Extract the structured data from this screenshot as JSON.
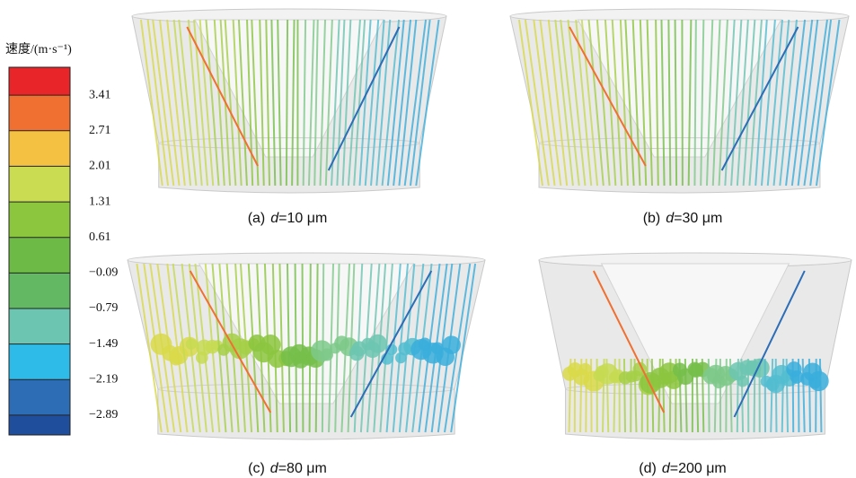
{
  "colorbar": {
    "title": "速度/(m·s⁻¹)",
    "clim": [
      -3.28,
      3.96
    ],
    "ticks": [
      3.41,
      2.71,
      2.01,
      1.31,
      0.61,
      {
        "value": -0.09,
        "label": "−0.09"
      },
      {
        "value": -0.79,
        "label": "−0.79"
      },
      {
        "value": -1.49,
        "label": "−1.49"
      },
      {
        "value": -2.19,
        "label": "−2.19"
      },
      {
        "value": -2.89,
        "label": "−2.89"
      }
    ],
    "colors": [
      "#e8262a",
      "#f07032",
      "#f5c143",
      "#c9dc52",
      "#8cc63f",
      "#6dbb46",
      "#62b863",
      "#6cc5b0",
      "#2fbbe8",
      "#2c6db6",
      "#1f4e9c"
    ]
  },
  "panels": [
    {
      "label": "(a)",
      "symbol": "d",
      "text": "=10 μm"
    },
    {
      "label": "(b)",
      "symbol": "d",
      "text": "=30 μm"
    },
    {
      "label": "(c)",
      "symbol": "d",
      "text": "=80 μm"
    },
    {
      "label": "(d)",
      "symbol": "d",
      "text": "=200 μm"
    }
  ]
}
